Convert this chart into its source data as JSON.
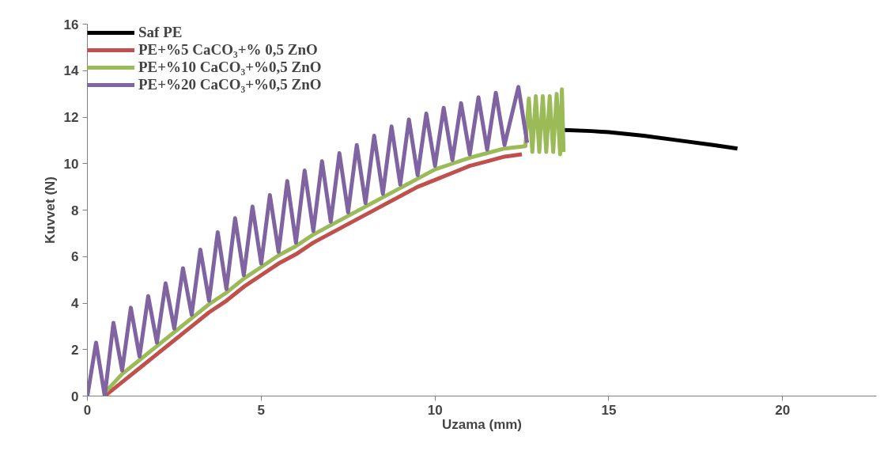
{
  "chart_data": {
    "type": "line",
    "xlabel": "Uzama (mm)",
    "ylabel": "Kuvvet (N)",
    "xlim": [
      0,
      22.7
    ],
    "xticks": [
      0,
      5,
      10,
      15,
      20
    ],
    "ylim": [
      0,
      16
    ],
    "yticks": [
      0,
      2,
      4,
      6,
      8,
      10,
      12,
      14,
      16
    ],
    "grid": false,
    "legend": "top left",
    "series": [
      {
        "name": "Saf PE",
        "color": "#000000",
        "x": [
          13.7,
          14.5,
          15,
          16,
          17,
          18,
          18.7
        ],
        "values": [
          11.45,
          11.4,
          11.35,
          11.2,
          11.0,
          10.8,
          10.65
        ]
      },
      {
        "name": "PE+%5 CaCO₃+% 0,5 ZnO",
        "color": "#c0504d",
        "x": [
          0.5,
          1,
          1.5,
          2,
          2.5,
          3,
          3.5,
          4,
          4.5,
          5,
          5.5,
          6,
          6.5,
          7,
          7.5,
          8,
          8.5,
          9,
          9.5,
          10,
          10.5,
          11,
          11.5,
          12,
          12.5
        ],
        "values": [
          0,
          0.6,
          1.2,
          1.8,
          2.4,
          3.0,
          3.6,
          4.1,
          4.7,
          5.2,
          5.7,
          6.1,
          6.6,
          7.0,
          7.4,
          7.8,
          8.2,
          8.6,
          9.0,
          9.3,
          9.6,
          9.9,
          10.1,
          10.3,
          10.4
        ]
      },
      {
        "name": "PE+%10 CaCO₃+%0,5 ZnO",
        "color": "#9bbb59",
        "x": [
          0.5,
          1,
          1.5,
          2,
          2.5,
          3,
          3.5,
          4,
          4.5,
          5,
          5.5,
          6,
          6.5,
          7,
          7.5,
          8,
          8.5,
          9,
          9.5,
          10,
          10.5,
          11,
          11.5,
          12,
          12.6,
          12.7,
          12.8,
          12.9,
          13.0,
          13.1,
          13.2,
          13.3,
          13.4,
          13.5,
          13.6,
          13.65,
          13.7
        ],
        "values": [
          0.15,
          0.95,
          1.55,
          2.15,
          2.75,
          3.35,
          3.95,
          4.45,
          5.05,
          5.55,
          6.05,
          6.45,
          6.95,
          7.35,
          7.75,
          8.15,
          8.55,
          8.95,
          9.35,
          9.75,
          10.0,
          10.25,
          10.45,
          10.65,
          10.75,
          12.8,
          10.5,
          12.9,
          10.5,
          12.9,
          10.5,
          12.9,
          10.5,
          13.0,
          10.4,
          13.2,
          10.5
        ]
      },
      {
        "name": "PE+%20 CaCO₃+%0,5 ZnO",
        "color": "#8064a2",
        "x": [
          0,
          0.25,
          0.5,
          0.75,
          1,
          1.25,
          1.5,
          1.75,
          2,
          2.25,
          2.5,
          2.75,
          3,
          3.25,
          3.5,
          3.75,
          4,
          4.25,
          4.5,
          4.75,
          5,
          5.25,
          5.5,
          5.75,
          6,
          6.25,
          6.5,
          6.75,
          7,
          7.25,
          7.5,
          7.75,
          8,
          8.25,
          8.5,
          8.75,
          9,
          9.25,
          9.5,
          9.75,
          10,
          10.25,
          10.5,
          10.75,
          11,
          11.25,
          11.5,
          11.75,
          12,
          12.4,
          12.65
        ],
        "values": [
          0,
          2.3,
          0,
          3.15,
          1.1,
          3.8,
          1.7,
          4.3,
          2.3,
          4.85,
          2.9,
          5.5,
          3.5,
          6.3,
          4.1,
          7.05,
          4.6,
          7.65,
          5.2,
          8.15,
          5.7,
          8.65,
          6.2,
          9.25,
          6.6,
          9.7,
          7.1,
          10.1,
          7.5,
          10.45,
          7.9,
          10.8,
          8.3,
          11.2,
          8.7,
          11.6,
          9.1,
          11.9,
          9.5,
          12.15,
          9.9,
          12.4,
          10.15,
          12.6,
          10.4,
          12.85,
          10.6,
          13.05,
          10.8,
          13.3,
          10.9
        ]
      }
    ]
  }
}
